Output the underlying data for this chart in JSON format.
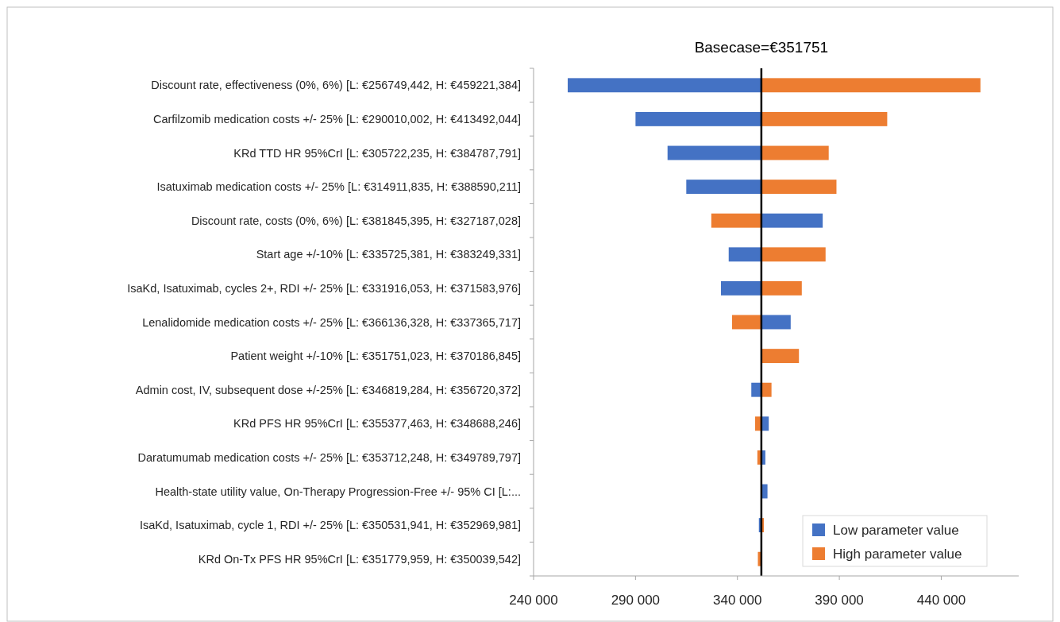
{
  "chart_data": {
    "type": "bar",
    "orientation": "horizontal",
    "categories": [
      "Discount rate, effectiveness (0%, 6%) [L: €256749,442, H: €459221,384]",
      "Carfilzomib medication costs +/- 25% [L: €290010,002, H: €413492,044]",
      "KRd TTD HR 95%CrI [L: €305722,235, H: €384787,791]",
      "Isatuximab medication costs +/- 25% [L: €314911,835, H: €388590,211]",
      "Discount rate, costs (0%, 6%) [L: €381845,395, H: €327187,028]",
      "Start age +/-10% [L: €335725,381, H: €383249,331]",
      "IsaKd, Isatuximab, cycles 2+, RDI +/- 25% [L: €331916,053, H: €371583,976]",
      "Lenalidomide medication costs +/- 25% [L: €366136,328, H: €337365,717]",
      "Patient weight +/-10% [L: €351751,023, H: €370186,845]",
      "Admin cost, IV, subsequent dose +/-25% [L: €346819,284, H: €356720,372]",
      "KRd PFS HR 95%CrI [L: €355377,463, H: €348688,246]",
      "Daratumumab medication costs +/- 25% [L: €353712,248, H: €349789,797]",
      "Health-state utility value, On-Therapy Progression-Free +/- 95% CI [L:...",
      "IsaKd, Isatuximab, cycle 1, RDI +/- 25% [L: €350531,941, H: €352969,981]",
      "KRd On-Tx PFS HR 95%CrI [L: €351779,959, H: €350039,542]"
    ],
    "series": [
      {
        "name": "Low parameter value",
        "color": "#4472c4",
        "base": [
          351751,
          351751,
          351751,
          351751,
          351751,
          351751,
          351751,
          351751,
          null,
          351751,
          351751,
          351751,
          351751,
          351751,
          null
        ],
        "values": [
          -95002,
          -61741,
          -46029,
          -36839,
          30094,
          -16026,
          -19835,
          14385,
          null,
          -4932,
          3626,
          1961,
          3000,
          -1219,
          null
        ]
      },
      {
        "name": "High parameter value",
        "color": "#ed7d31",
        "base": [
          351751,
          351751,
          351751,
          351751,
          351751,
          351751,
          351751,
          351751,
          351751,
          351751,
          351751,
          351751,
          null,
          351751,
          351751
        ],
        "values": [
          107470,
          61741,
          33037,
          36839,
          -24564,
          31498,
          19833,
          -14385,
          18436,
          4969,
          -3063,
          -1961,
          null,
          1219,
          -1711
        ]
      }
    ],
    "xlim": [
      240000,
      478000
    ],
    "xticks": [
      {
        "value": 240000,
        "label": "240 000"
      },
      {
        "value": 290000,
        "label": "290 000"
      },
      {
        "value": 340000,
        "label": "340 000"
      },
      {
        "value": 390000,
        "label": "390 000"
      },
      {
        "value": 440000,
        "label": "440 000"
      }
    ],
    "ref_lines": [
      {
        "axis": "x",
        "value": 351751,
        "label": "Basecase=€351751",
        "color": "#000000"
      }
    ],
    "legend": "bottom right",
    "grid": false
  }
}
